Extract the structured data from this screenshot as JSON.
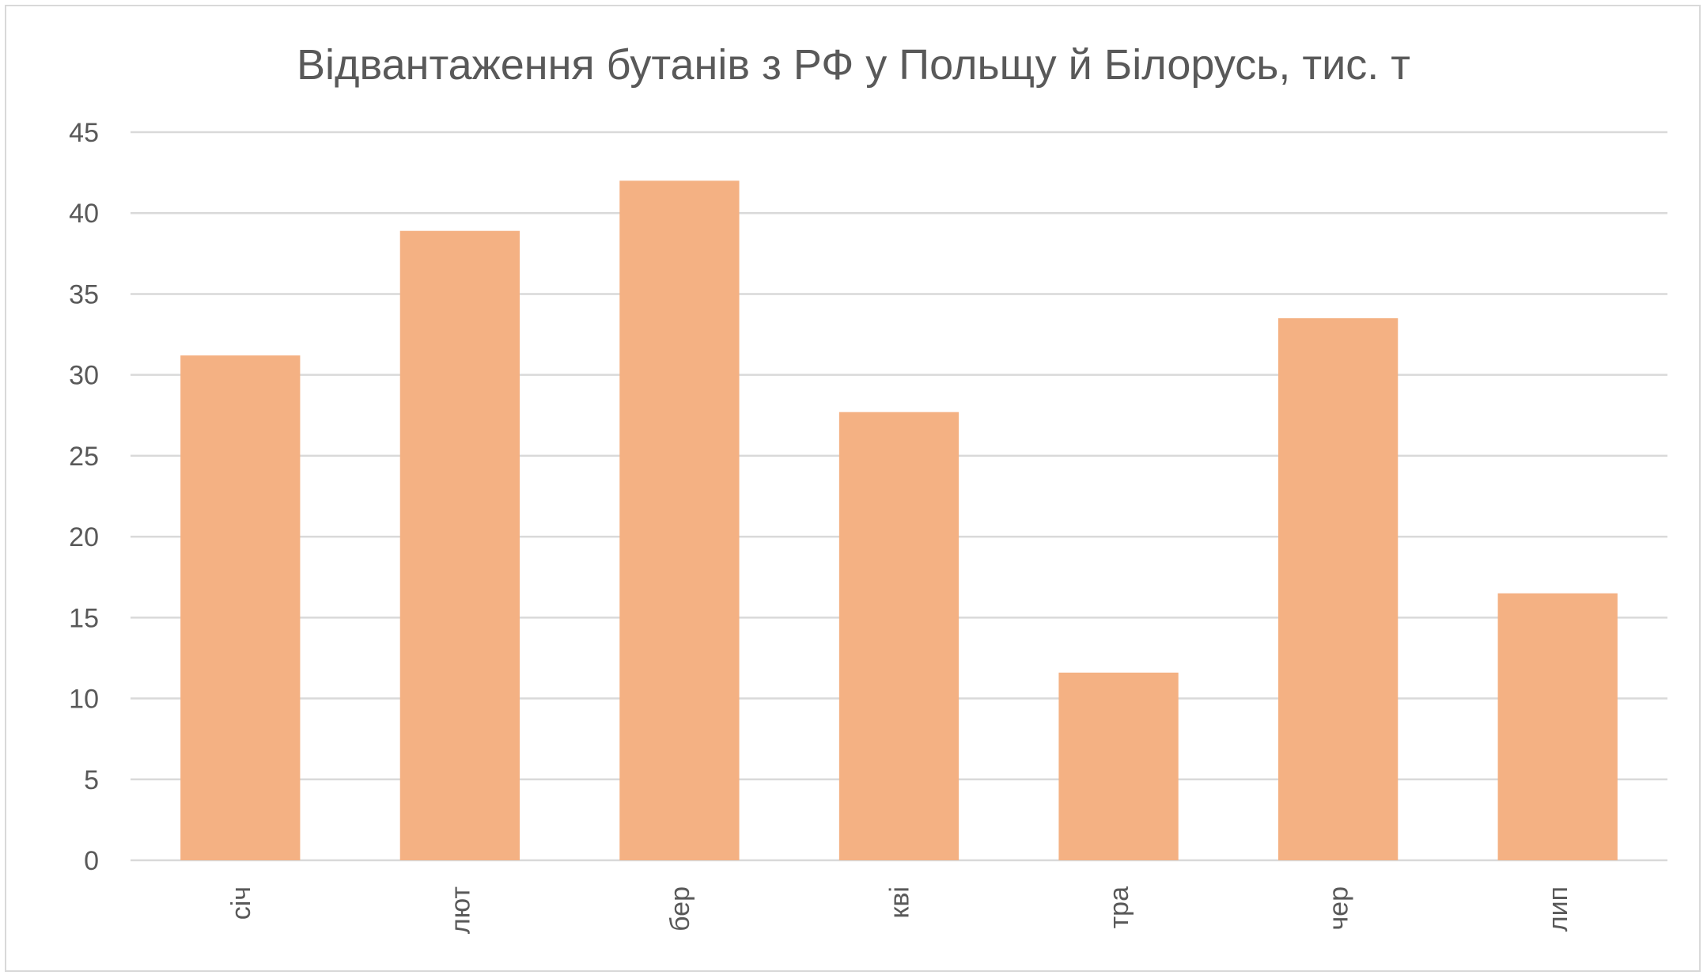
{
  "chart_data": {
    "type": "bar",
    "title": "Відвантаження бутанів з РФ у Польщу й Білорусь, тис. т",
    "categories": [
      "січ",
      "лют",
      "бер",
      "кві",
      "тра",
      "чер",
      "лип"
    ],
    "values": [
      31.2,
      38.9,
      42.0,
      27.7,
      11.6,
      33.5,
      16.5
    ],
    "xlabel": "",
    "ylabel": "",
    "ylim": [
      0,
      45
    ],
    "yticks": [
      0,
      5,
      10,
      15,
      20,
      25,
      30,
      35,
      40,
      45
    ],
    "grid": true,
    "legend": "none",
    "x_label_rotation": "vertical",
    "colors": {
      "bar": "#f4b183",
      "grid": "#d9d9d9",
      "text": "#595959",
      "border": "#d9d9d9"
    }
  }
}
